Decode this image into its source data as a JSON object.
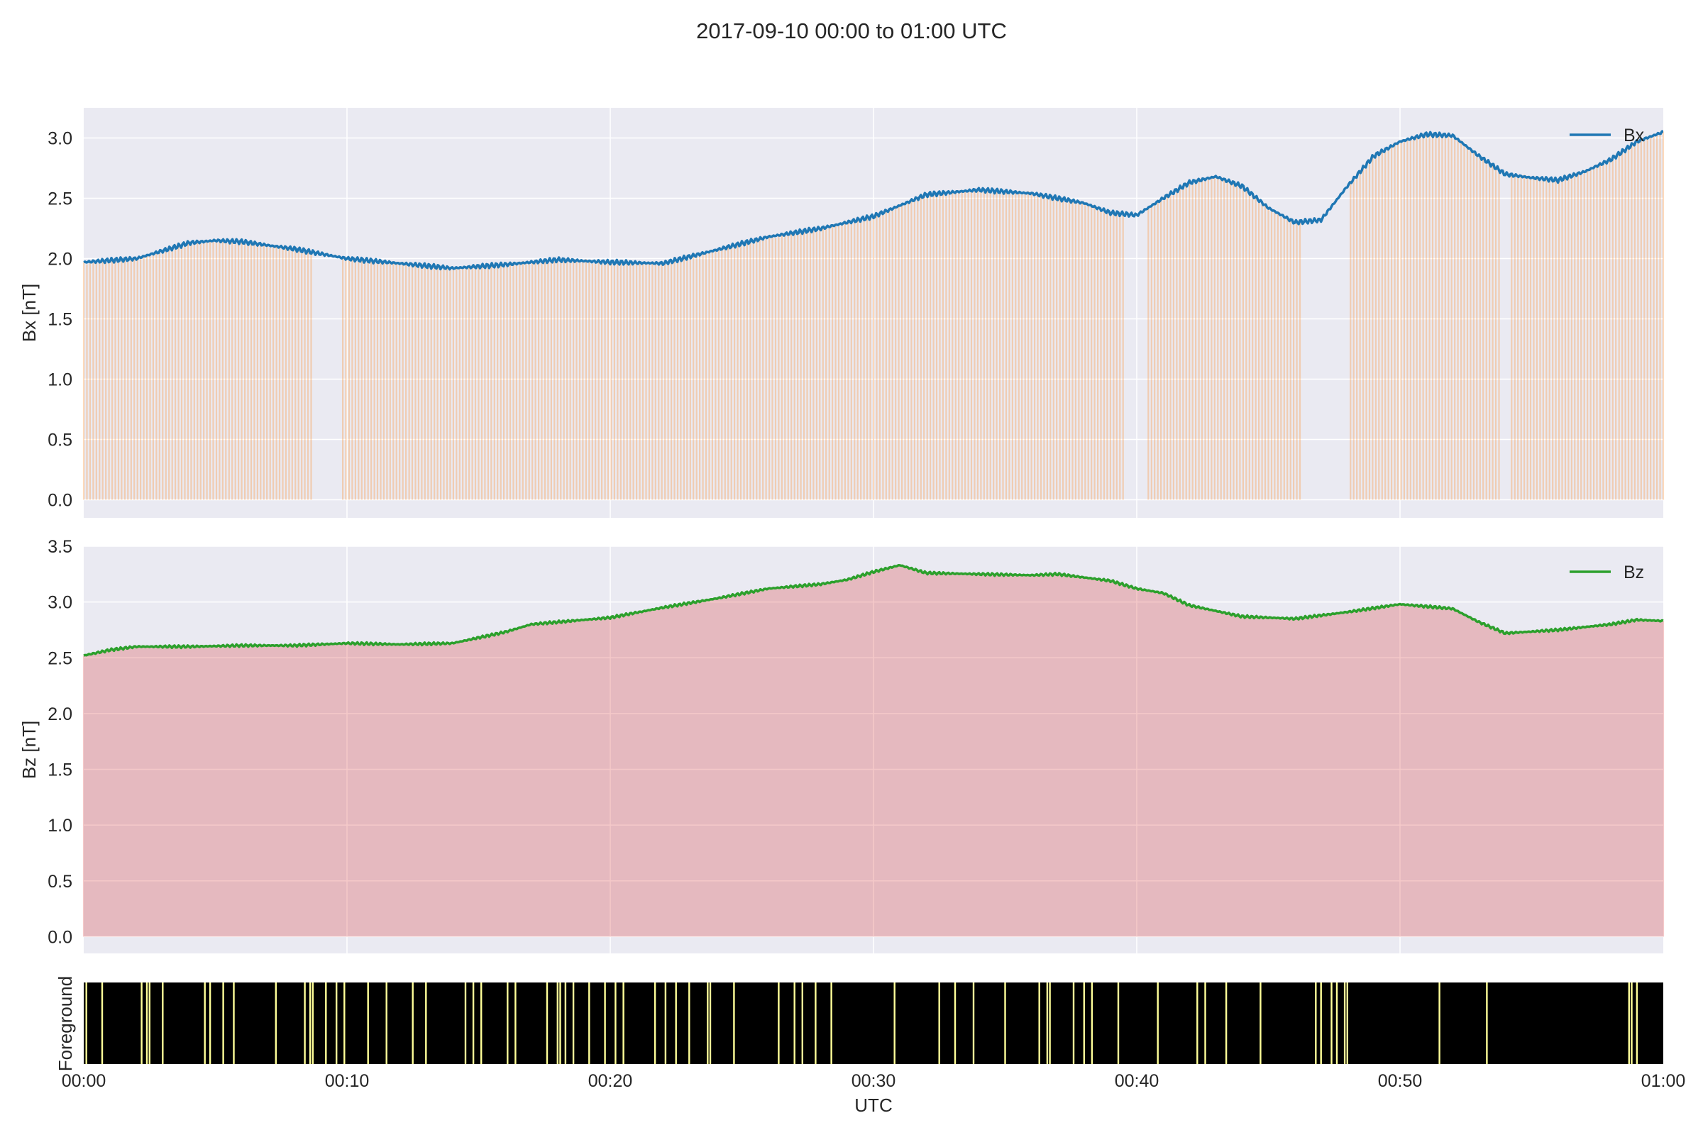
{
  "title": "2017-09-10 00:00 to 01:00 UTC",
  "colors": {
    "panel_bg": "#eaeaf2",
    "grid": "#ffffff",
    "bx_line": "#1f77b4",
    "bx_fill": "#ff7f0e",
    "bz_line": "#2ca02c",
    "bz_fill": "#d62728",
    "foreground_bg": "#000000",
    "foreground_mark": "#ffff99"
  },
  "chart_data": [
    {
      "type": "line",
      "panel": "bx",
      "ylabel": "Bx [nT]",
      "ylim": [
        -0.15,
        3.25
      ],
      "yticks": [
        "0.0",
        "0.5",
        "1.0",
        "1.5",
        "2.0",
        "2.5",
        "3.0"
      ],
      "legend": "Bx",
      "legend_loc": "upper right",
      "grid": true,
      "x_minutes": [
        0,
        2,
        4,
        5,
        6,
        8,
        10,
        12,
        14,
        16,
        18,
        20,
        22,
        24,
        26,
        28,
        30,
        32,
        34,
        36,
        38,
        39,
        40,
        41,
        42,
        43,
        44,
        45,
        46,
        47,
        48,
        49,
        50,
        51,
        52,
        53,
        54,
        55,
        56,
        57,
        58,
        59,
        60
      ],
      "values": [
        1.97,
        2.0,
        2.13,
        2.15,
        2.14,
        2.08,
        2.0,
        1.96,
        1.92,
        1.95,
        1.99,
        1.97,
        1.96,
        2.07,
        2.18,
        2.25,
        2.35,
        2.53,
        2.57,
        2.54,
        2.46,
        2.38,
        2.36,
        2.5,
        2.63,
        2.68,
        2.6,
        2.42,
        2.3,
        2.32,
        2.6,
        2.85,
        2.97,
        3.03,
        3.02,
        2.85,
        2.7,
        2.67,
        2.65,
        2.72,
        2.82,
        2.97,
        3.05
      ],
      "fill_to_zero": true,
      "fill_gaps_minutes": [
        [
          8.7,
          9.8
        ],
        [
          39.5,
          40.4
        ],
        [
          46.3,
          48.0
        ],
        [
          53.8,
          54.2
        ]
      ]
    },
    {
      "type": "line",
      "panel": "bz",
      "ylabel": "Bz [nT]",
      "ylim": [
        -0.15,
        3.5
      ],
      "yticks": [
        "0.0",
        "0.5",
        "1.0",
        "1.5",
        "2.0",
        "2.5",
        "3.0",
        "3.5"
      ],
      "legend": "Bz",
      "legend_loc": "upper right",
      "grid": true,
      "x_minutes": [
        0,
        1,
        2,
        4,
        6,
        8,
        10,
        12,
        14,
        16,
        17,
        18,
        20,
        22,
        24,
        26,
        28,
        29,
        30,
        31,
        32,
        34,
        36,
        37,
        38,
        39,
        40,
        41,
        42,
        44,
        46,
        48,
        50,
        52,
        53,
        54,
        56,
        58,
        59,
        60
      ],
      "values": [
        2.52,
        2.57,
        2.6,
        2.6,
        2.61,
        2.61,
        2.63,
        2.62,
        2.63,
        2.73,
        2.8,
        2.82,
        2.86,
        2.95,
        3.03,
        3.12,
        3.16,
        3.2,
        3.27,
        3.33,
        3.26,
        3.25,
        3.24,
        3.25,
        3.22,
        3.19,
        3.12,
        3.08,
        2.97,
        2.87,
        2.85,
        2.91,
        2.98,
        2.94,
        2.82,
        2.72,
        2.75,
        2.8,
        2.84,
        2.83
      ],
      "fill_to_zero": true
    },
    {
      "type": "heatmap",
      "panel": "foreground",
      "ylabel": "Foreground",
      "xlabel": "UTC",
      "xticks": [
        "00:00",
        "00:10",
        "00:20",
        "00:30",
        "00:40",
        "00:50",
        "01:00"
      ],
      "x_range_minutes": [
        0,
        60
      ],
      "flag_minutes": [
        0.1,
        0.7,
        2.2,
        2.4,
        2.5,
        3.0,
        4.6,
        4.8,
        5.3,
        5.7,
        7.3,
        8.4,
        8.6,
        8.7,
        9.2,
        9.6,
        9.9,
        10.8,
        11.5,
        12.5,
        13.0,
        14.5,
        14.8,
        15.1,
        16.1,
        16.4,
        17.6,
        18.0,
        18.1,
        18.3,
        18.6,
        19.2,
        19.8,
        20.2,
        20.5,
        21.7,
        22.1,
        22.5,
        23.0,
        23.7,
        23.8,
        24.7,
        26.4,
        27.0,
        27.3,
        27.8,
        28.4,
        30.8,
        32.5,
        33.1,
        33.8,
        35.0,
        36.3,
        36.6,
        36.7,
        37.6,
        38.0,
        38.3,
        39.3,
        40.8,
        42.3,
        42.6,
        43.4,
        44.7,
        46.8,
        47.0,
        47.4,
        47.6,
        47.9,
        48.0,
        51.5,
        53.3,
        58.7,
        58.8,
        59.0
      ]
    }
  ]
}
